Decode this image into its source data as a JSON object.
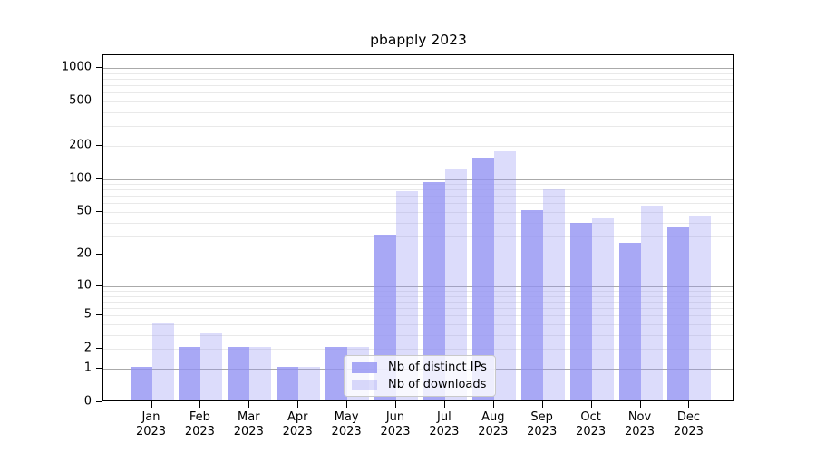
{
  "chart_data": {
    "type": "bar",
    "title": "pbapply 2023",
    "categories": [
      "Jan",
      "Feb",
      "Mar",
      "Apr",
      "May",
      "Jun",
      "Jul",
      "Aug",
      "Sep",
      "Oct",
      "Nov",
      "Dec"
    ],
    "year": "2023",
    "series": [
      {
        "name": "Nb of distinct IPs",
        "values": [
          1,
          2,
          2,
          1,
          2,
          30,
          90,
          150,
          50,
          38,
          25,
          35
        ],
        "color": "rgba(145,145,242,0.79)"
      },
      {
        "name": "Nb of downloads",
        "values": [
          4,
          3,
          2,
          1,
          2,
          75,
          120,
          170,
          78,
          42,
          55,
          45
        ],
        "color": "rgba(145,145,242,0.32)"
      }
    ],
    "xlabel": "",
    "ylabel": "",
    "yaxis": {
      "scale": "log1p",
      "ticks": [
        0,
        1,
        2,
        5,
        10,
        20,
        50,
        100,
        200,
        500,
        1000
      ],
      "ylim": [
        0,
        1300
      ]
    },
    "grid": {
      "on": true,
      "major": [
        1,
        10,
        100,
        1000
      ],
      "minor": [
        2,
        3,
        4,
        5,
        6,
        7,
        8,
        9,
        20,
        30,
        40,
        50,
        60,
        70,
        80,
        90,
        200,
        300,
        400,
        500,
        600,
        700,
        800,
        900
      ],
      "major_color": "#aaaaaa",
      "minor_color": "#e9e9e9"
    },
    "legend": {
      "position": "inside-bottom-center"
    },
    "colors": {
      "axis": "#000000",
      "text": "#000000",
      "background": "#ffffff"
    }
  }
}
